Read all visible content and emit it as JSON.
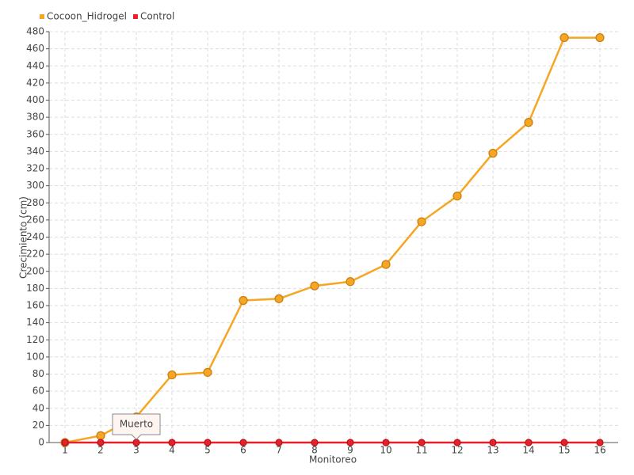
{
  "chart_data": {
    "type": "line",
    "x_label": "Monitoreo",
    "y_label": "Crecimiento (cm)",
    "categories": [
      "1",
      "2",
      "3",
      "4",
      "5",
      "6",
      "7",
      "8",
      "9",
      "10",
      "11",
      "12",
      "13",
      "14",
      "15",
      "16"
    ],
    "series": [
      {
        "name": "Cocoon_Hidrogel",
        "color": "#f5a623",
        "values": [
          0,
          8,
          30,
          79,
          82,
          166,
          168,
          183,
          188,
          208,
          258,
          288,
          338,
          374,
          473,
          473
        ]
      },
      {
        "name": "Control",
        "color": "#e8202a",
        "values": [
          0,
          0,
          0,
          0,
          0,
          0,
          0,
          0,
          0,
          0,
          0,
          0,
          0,
          0,
          0,
          0
        ]
      }
    ],
    "annotation": {
      "text": "Muerto",
      "series": 1,
      "index": 2
    },
    "ylim": [
      0,
      480
    ],
    "yticks": [
      0,
      20,
      40,
      60,
      80,
      100,
      120,
      140,
      160,
      180,
      200,
      220,
      240,
      260,
      280,
      300,
      320,
      340,
      360,
      380,
      400,
      420,
      440,
      460,
      480
    ],
    "grid": true,
    "legend": "top-left"
  }
}
